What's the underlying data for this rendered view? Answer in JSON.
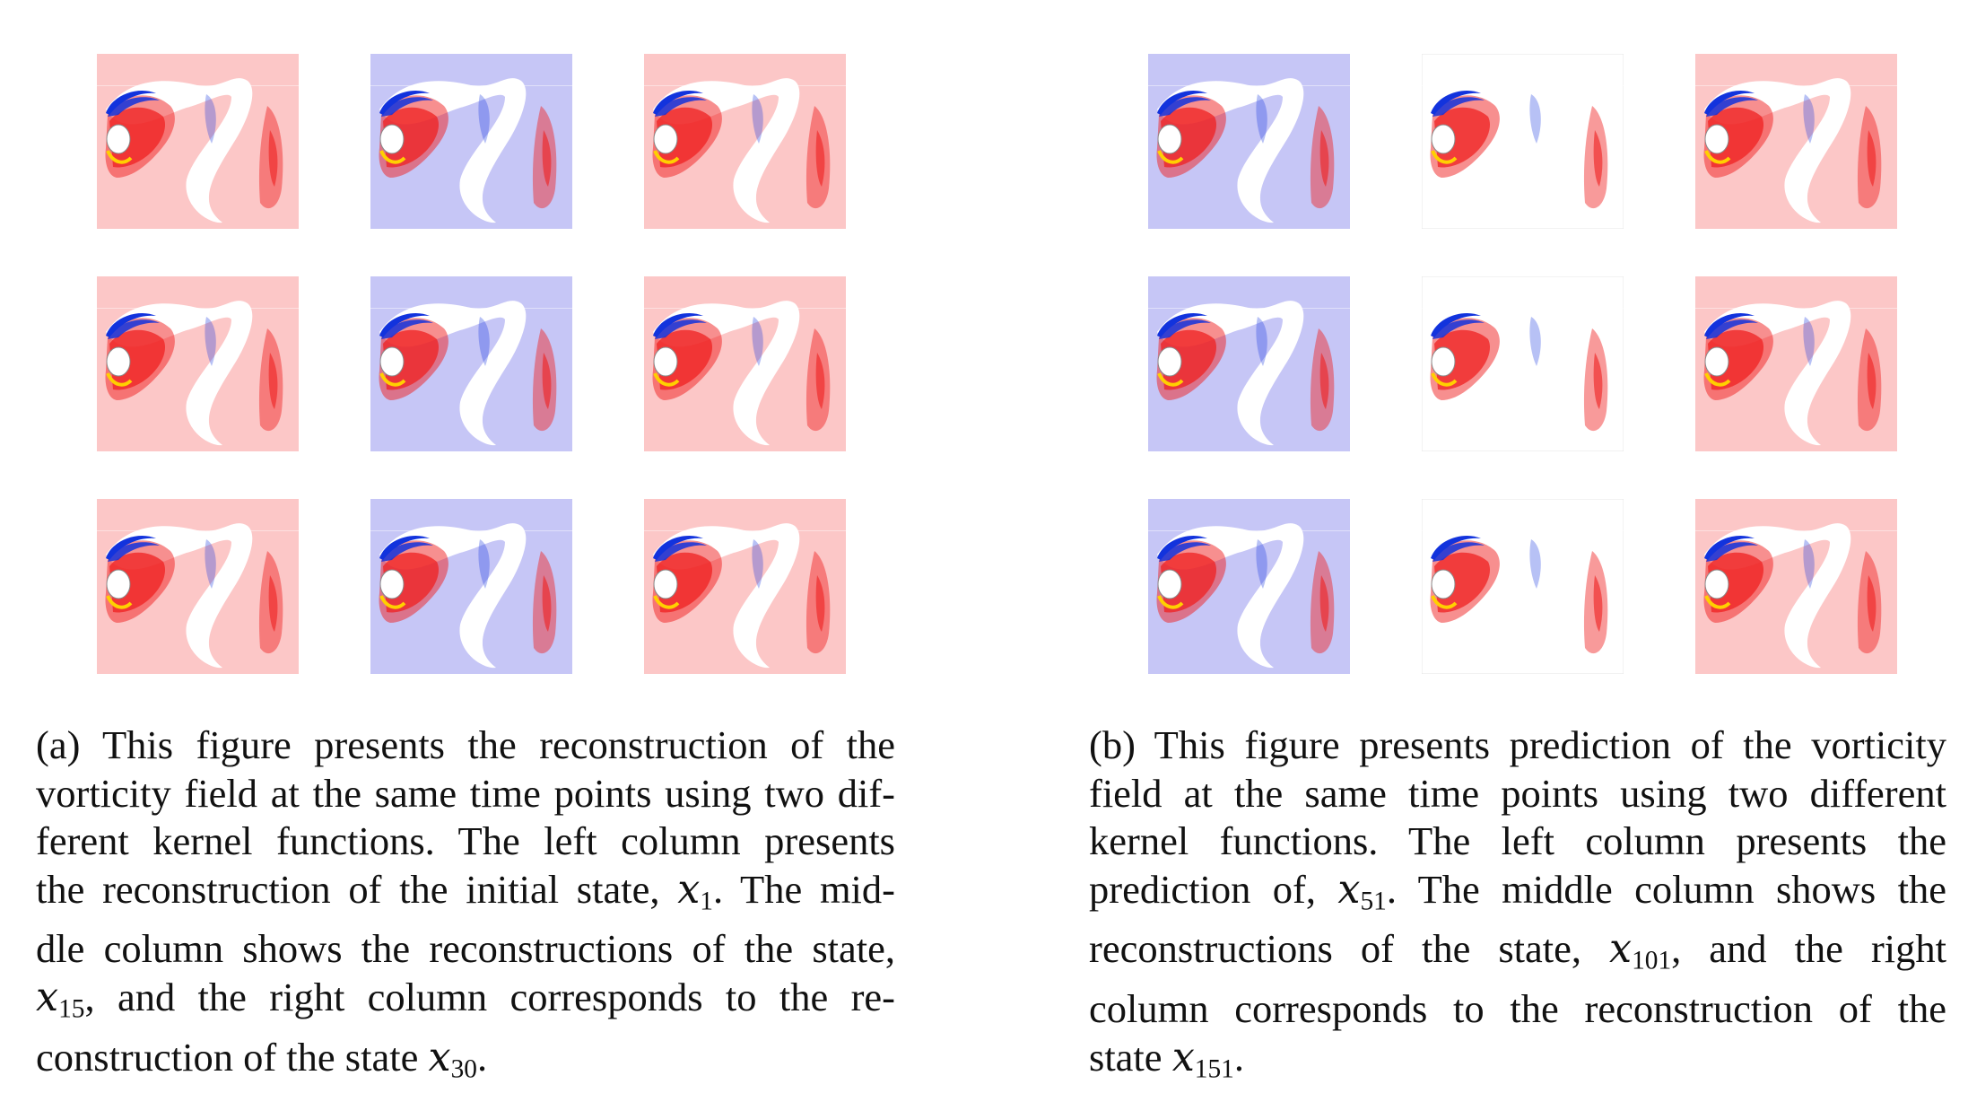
{
  "colors": {
    "red_background": "#fcc7c7",
    "blue_background": "#c6c6f6",
    "white_background": "#ffffff",
    "positive_vorticity": "#ef2020",
    "negative_vorticity": "#1233dd",
    "hot_edge": "#ffd000"
  },
  "panels": [
    {
      "id": "a",
      "rows": [
        [
          "red",
          "blue",
          "red"
        ],
        [
          "red",
          "blue",
          "red"
        ],
        [
          "red",
          "blue",
          "red"
        ]
      ],
      "caption": {
        "line1": "(a) This figure presents the reconstruction of the",
        "line2": "vorticity field at the same time points using two dif-",
        "line3": "ferent kernel functions. The left column presents",
        "line4_pre": "the reconstruction of the initial state, ",
        "line4_var": "x",
        "line4_sub": "1",
        "line4_post": ". The mid-",
        "line5": "dle column shows the reconstructions of the state,",
        "line6_var": "x",
        "line6_sub": "15",
        "line6_post": ", and the right column corresponds to the re-",
        "line7_pre": "construction of the state ",
        "line7_var": "x",
        "line7_sub": "30",
        "line7_post": "."
      }
    },
    {
      "id": "b",
      "rows": [
        [
          "blue",
          "white",
          "red"
        ],
        [
          "blue",
          "white",
          "red"
        ],
        [
          "blue",
          "white",
          "red"
        ]
      ],
      "caption": {
        "line1": "(b) This figure presents prediction of the vorticity",
        "line2": "field at the same time points using two different",
        "line3": "kernel functions.  The left column presents the",
        "line4_pre": "prediction of, ",
        "line4_var": "x",
        "line4_sub": "51",
        "line4_post": ". The middle column shows the",
        "line5_pre": "reconstructions of the state, ",
        "line5_var": "x",
        "line5_sub": "101",
        "line5_post": ", and the right",
        "line6": "column corresponds to the reconstruction of the",
        "line7_pre": "state ",
        "line7_var": "x",
        "line7_sub": "151",
        "line7_post": "."
      }
    }
  ]
}
